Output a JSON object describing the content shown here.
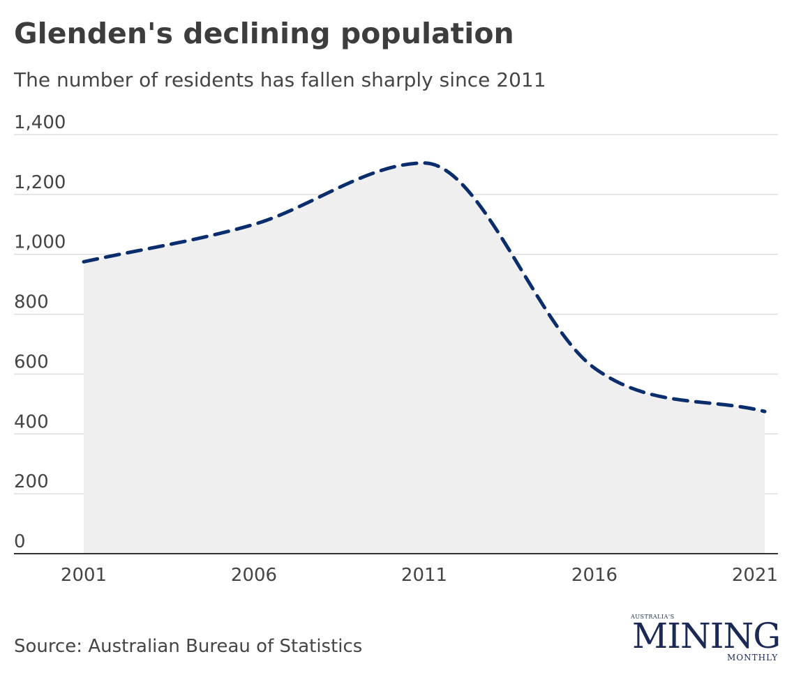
{
  "header": {
    "title": "Glenden's declining population",
    "subtitle": "The number of residents has fallen sharply since 2011"
  },
  "footer": {
    "source": "Source: Australian Bureau of Statistics"
  },
  "logo": {
    "top_text": "AUSTRALIA'S",
    "main_text": "MINING",
    "bottom_text": "MONTHLY",
    "color": "#1a2a55"
  },
  "chart_data": {
    "type": "area",
    "title": "Glenden's declining population",
    "subtitle": "The number of residents has fallen sharply since 2011",
    "xlabel": "",
    "ylabel": "",
    "x": [
      2001,
      2006,
      2011,
      2016,
      2021
    ],
    "x_ticks": [
      "2001",
      "2006",
      "2011",
      "2016",
      "2021"
    ],
    "y_ticks": [
      "0",
      "200",
      "400",
      "600",
      "800",
      "1,000",
      "1,200",
      "1,400"
    ],
    "ylim": [
      0,
      1400
    ],
    "series": [
      {
        "values": [
          975,
          1100,
          1305,
          620,
          475
        ],
        "color": "#0a2d6e",
        "line_style": "dashed",
        "fill_color": "#efefef"
      }
    ],
    "grid": true,
    "gridline_color": "#dddddd"
  }
}
